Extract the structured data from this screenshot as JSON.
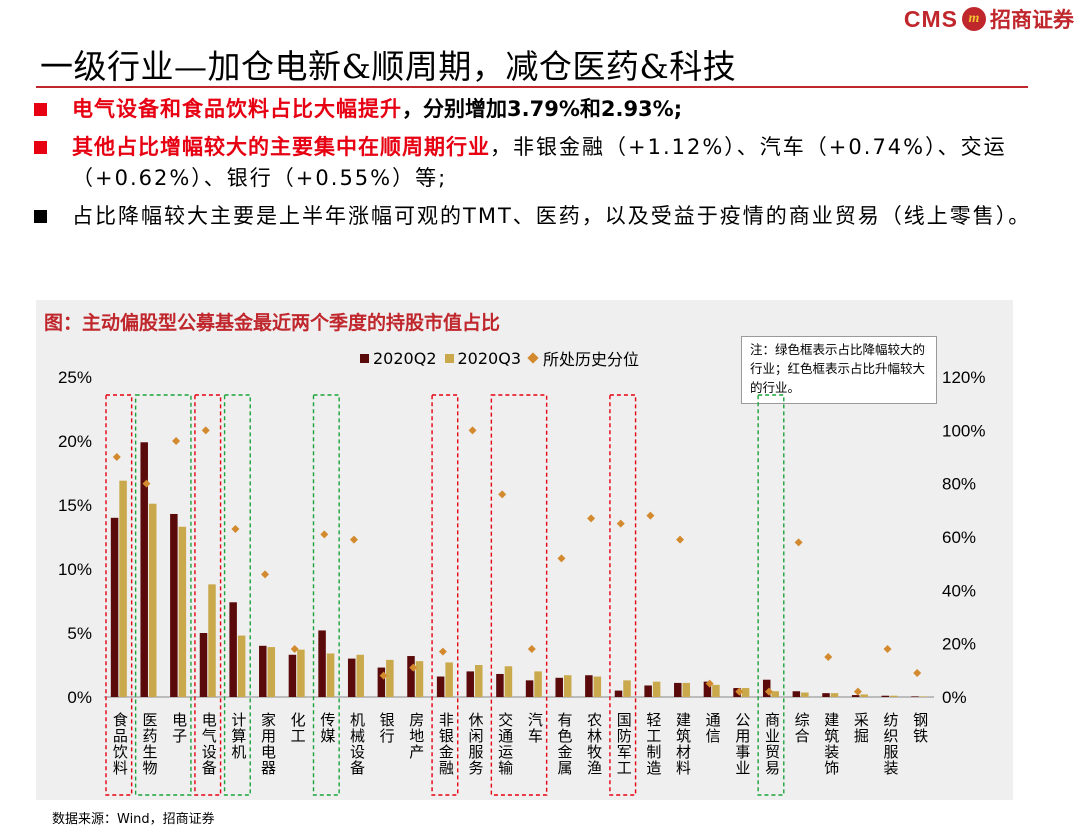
{
  "brand": {
    "cms": "CMS",
    "mark": "m",
    "name": "招商证券",
    "color": "#c0272d"
  },
  "title": "一级行业—加仓电新&顺周期，减仓医药&科技",
  "bullets": [
    {
      "highlight": "电气设备和食品饮料占比大幅提升",
      "text": "，分别增加3.79%和2.93%;"
    },
    {
      "highlight": "其他占比增幅较大的主要集中在顺周期行业",
      "text": "，非银金融（+1.12%）、汽车（+0.74%）、交运（+0.62%）、银行（+0.55%）等;"
    },
    {
      "text": "占比降幅较大主要是上半年涨幅可观的TMT、医药，以及受益于疫情的商业贸易（线上零售）。"
    }
  ],
  "note": "注：绿色框表示占比降幅较大的行业；红色框表示占比升幅较大的行业。",
  "source": "数据来源：Wind，招商证券",
  "chart_data": {
    "type": "bar",
    "title": "图：主动偏股型公募基金最近两个季度的持股市值占比",
    "legend": [
      "2020Q2",
      "2020Q3",
      "所处历史分位"
    ],
    "colors": {
      "q2": "#5a0a0a",
      "q3": "#c9a94b",
      "pct": "#d38a2e",
      "red_box": "#e60012",
      "green_box": "#1aa33a"
    },
    "categories": [
      "食品饮料",
      "医药生物",
      "电子",
      "电气设备",
      "计算机",
      "家用电器",
      "化工",
      "传媒",
      "机械设备",
      "银行",
      "房地产",
      "非银金融",
      "休闲服务",
      "交通运输",
      "汽车",
      "有色金属",
      "农林牧渔",
      "国防军工",
      "轻工制造",
      "建筑材料",
      "通信",
      "公用事业",
      "商业贸易",
      "综合",
      "建筑装饰",
      "采掘",
      "纺织服装",
      "钢铁"
    ],
    "series": [
      {
        "name": "2020Q2",
        "values": [
          14.0,
          19.9,
          14.3,
          5.0,
          7.4,
          4.0,
          3.3,
          5.2,
          3.0,
          2.3,
          3.2,
          1.6,
          2.0,
          1.8,
          1.3,
          1.5,
          1.7,
          0.5,
          0.9,
          1.1,
          1.2,
          0.7,
          1.35,
          0.45,
          0.3,
          0.15,
          0.1,
          0.05
        ]
      },
      {
        "name": "2020Q3",
        "values": [
          16.9,
          15.1,
          13.3,
          8.8,
          4.8,
          3.9,
          3.7,
          3.4,
          3.3,
          2.9,
          2.8,
          2.7,
          2.5,
          2.4,
          2.0,
          1.7,
          1.6,
          1.3,
          1.2,
          1.1,
          0.95,
          0.7,
          0.45,
          0.35,
          0.3,
          0.2,
          0.1,
          0.05
        ]
      },
      {
        "name": "所处历史分位",
        "axis": "right",
        "values": [
          90,
          80,
          96,
          100,
          63,
          46,
          18,
          61,
          59,
          8,
          11,
          17,
          100,
          76,
          18,
          52,
          67,
          65,
          68,
          59,
          5,
          2,
          2,
          58,
          15,
          2,
          18,
          9
        ]
      }
    ],
    "y_left": {
      "ylim": [
        0,
        25
      ],
      "ticks": [
        "0%",
        "5%",
        "10%",
        "15%",
        "20%",
        "25%"
      ]
    },
    "y_right": {
      "ylim": [
        0,
        120
      ],
      "ticks": [
        "0%",
        "20%",
        "40%",
        "60%",
        "80%",
        "100%",
        "120%"
      ]
    },
    "highlight_boxes": [
      {
        "color": "red",
        "from": "食品饮料",
        "to": "食品饮料"
      },
      {
        "color": "green",
        "from": "医药生物",
        "to": "电子"
      },
      {
        "color": "red",
        "from": "电气设备",
        "to": "电气设备"
      },
      {
        "color": "green",
        "from": "计算机",
        "to": "计算机"
      },
      {
        "color": "green",
        "from": "传媒",
        "to": "传媒"
      },
      {
        "color": "red",
        "from": "非银金融",
        "to": "非银金融"
      },
      {
        "color": "red",
        "from": "交通运输",
        "to": "汽车"
      },
      {
        "color": "red",
        "from": "国防军工",
        "to": "国防军工"
      },
      {
        "color": "green",
        "from": "商业贸易",
        "to": "商业贸易"
      }
    ]
  }
}
